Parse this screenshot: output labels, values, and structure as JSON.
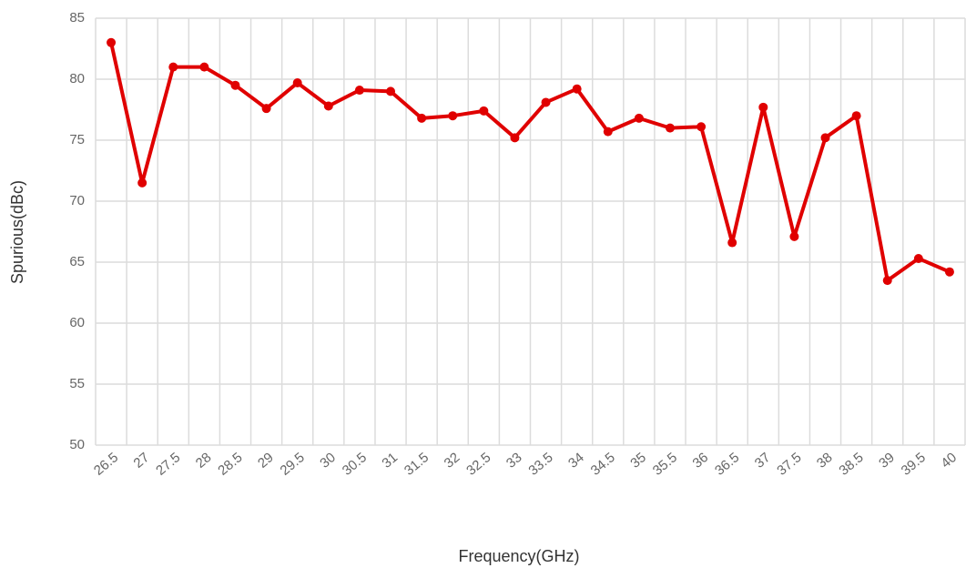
{
  "chart_data": {
    "type": "line",
    "x_label": "Frequency(GHz)",
    "y_label": "Spurious(dBc)",
    "categories": [
      "26.5",
      "27",
      "27.5",
      "28",
      "28.5",
      "29",
      "29.5",
      "30",
      "30.5",
      "31",
      "31.5",
      "32",
      "32.5",
      "33",
      "33.5",
      "34",
      "34.5",
      "35",
      "35.5",
      "36",
      "36.5",
      "37",
      "37.5",
      "38",
      "38.5",
      "39",
      "39.5",
      "40"
    ],
    "values": [
      83,
      71.5,
      81,
      81,
      79.5,
      77.6,
      79.7,
      77.8,
      79.1,
      79,
      76.8,
      77,
      77.4,
      75.2,
      78.1,
      79.2,
      75.7,
      76.8,
      76,
      76.1,
      66.6,
      77.7,
      67.1,
      75.2,
      77,
      63.5,
      65.3,
      64.2
    ],
    "color": "#e00000",
    "ylim": [
      50,
      85
    ],
    "yticks": [
      50,
      55,
      60,
      65,
      70,
      75,
      80,
      85
    ],
    "grid": true
  }
}
